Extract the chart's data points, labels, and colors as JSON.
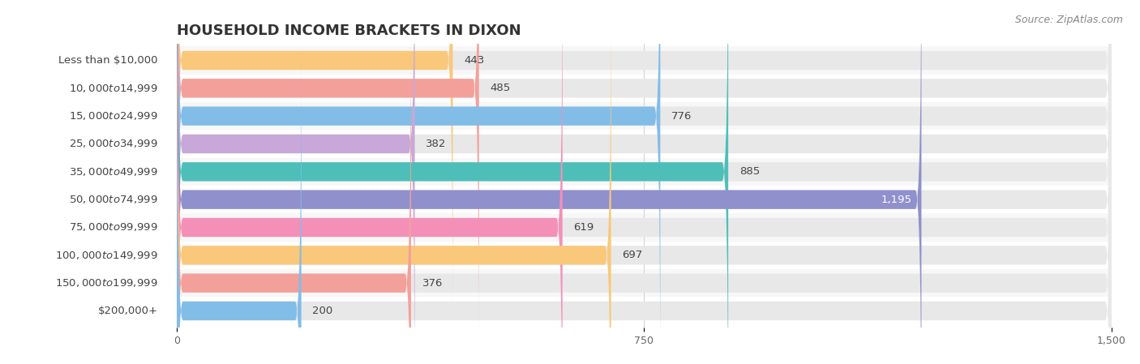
{
  "title": "HOUSEHOLD INCOME BRACKETS IN DIXON",
  "source": "Source: ZipAtlas.com",
  "categories": [
    "Less than $10,000",
    "$10,000 to $14,999",
    "$15,000 to $24,999",
    "$25,000 to $34,999",
    "$35,000 to $49,999",
    "$50,000 to $74,999",
    "$75,000 to $99,999",
    "$100,000 to $149,999",
    "$150,000 to $199,999",
    "$200,000+"
  ],
  "values": [
    443,
    485,
    776,
    382,
    885,
    1195,
    619,
    697,
    376,
    200
  ],
  "bar_colors": [
    "#F9C87A",
    "#F4A09A",
    "#82BDE8",
    "#C8A8D8",
    "#4DBFB8",
    "#9090CC",
    "#F490B8",
    "#F9C87A",
    "#F4A09A",
    "#82BDE8"
  ],
  "xlim": [
    0,
    1500
  ],
  "xticks": [
    0,
    750,
    1500
  ],
  "background_color": "#ffffff",
  "bar_bg_color": "#e8e8e8",
  "title_fontsize": 13,
  "label_fontsize": 9.5,
  "value_fontsize": 9.5,
  "source_fontsize": 9,
  "value_1195_color": "#ffffff"
}
